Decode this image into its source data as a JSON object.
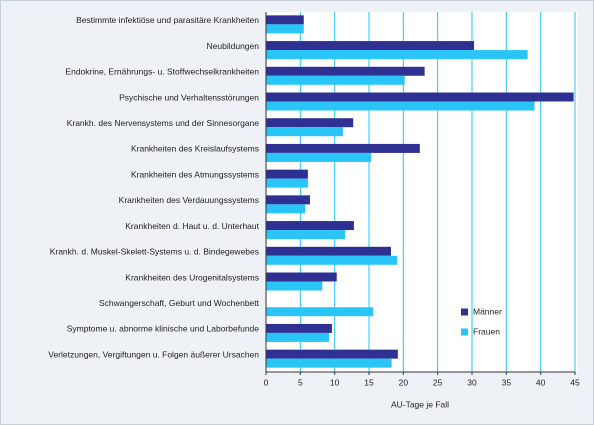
{
  "chart_data": {
    "type": "hbar",
    "categories": [
      "Bestimmte infektiöse und parasitäre Krankheiten",
      "Neubildungen",
      "Endokrine, Ernährungs- u. Stoffwechselkrankheiten",
      "Psychische und Verhaltensstörungen",
      "Krankh. des Nervensystems und der Sinnesorgane",
      "Krankheiten des Kreislaufsystems",
      "Krankheiten des Atmungssystems",
      "Krankheiten des Verdauungssystems",
      "Krankheiten d. Haut u. d. Unterhaut",
      "Krankh. d. Muskel-Skelett-Systems u. d. Bindegewebes",
      "Krankheiten des Urogenitalsystems",
      "Schwangerschaft, Geburt und Wochenbett",
      "Symptome u. abnorme klinische und Laborbefunde",
      "Verletzungen, Vergiftungen u. Folgen äußerer Ursachen"
    ],
    "series": [
      {
        "name": "Männer",
        "color": "#2e3192",
        "values": [
          5.5,
          30.3,
          23.1,
          44.8,
          12.7,
          22.4,
          6.1,
          6.4,
          12.8,
          18.2,
          10.3,
          null,
          9.6,
          19.2
        ]
      },
      {
        "name": "Frauen",
        "color": "#29c5f6",
        "values": [
          5.5,
          38.1,
          20.2,
          39.1,
          11.2,
          15.3,
          6.1,
          5.7,
          11.5,
          19.1,
          8.2,
          15.6,
          9.2,
          18.3
        ]
      }
    ],
    "xlabel": "AU-Tage je Fall",
    "xlim": [
      0,
      45
    ],
    "xticks": [
      0,
      5,
      10,
      15,
      20,
      25,
      30,
      35,
      40,
      45
    ],
    "grid": true,
    "legend": "lower right"
  }
}
